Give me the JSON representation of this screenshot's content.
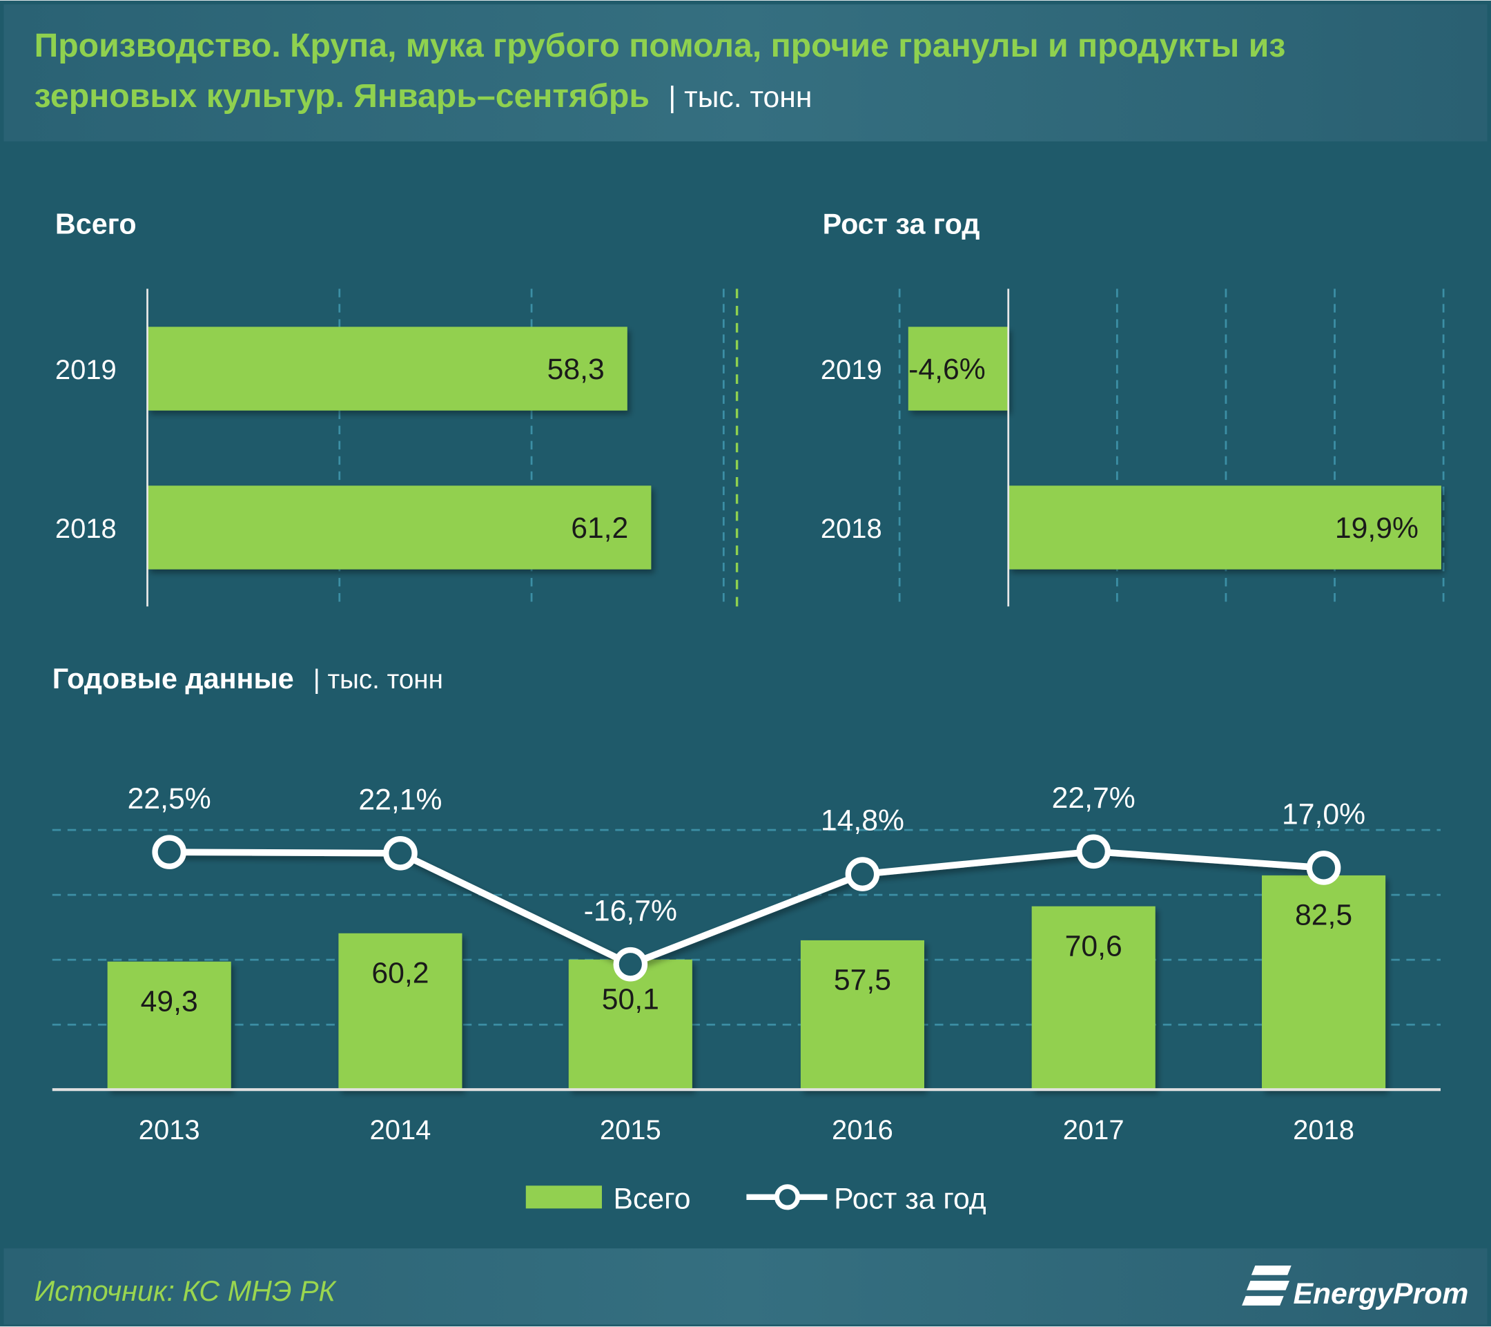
{
  "title": {
    "line1": "Производство. Крупа, мука грубого помола, прочие гранулы и продукты из",
    "line2": "зерновых культур. Январь–сентябрь",
    "unit": "| тыс. тонн"
  },
  "footer": {
    "source": "Источник: КС МНЭ РК",
    "logo": "EnergyProm"
  },
  "colors": {
    "background": "#1f5a6a",
    "header": "#2e6678",
    "bar": "#92d050",
    "accent_text": "#8fd14f",
    "line": "#ffffff"
  },
  "chart_data": [
    {
      "type": "bar",
      "orientation": "horizontal",
      "title": "Всего",
      "categories": [
        "2019",
        "2018"
      ],
      "values": [
        58.3,
        61.2
      ],
      "labels": [
        "58,3",
        "61,2"
      ],
      "xlim": [
        0,
        70
      ],
      "grid": true
    },
    {
      "type": "bar",
      "orientation": "horizontal",
      "title": "Рост за год",
      "categories": [
        "2019",
        "2018"
      ],
      "values": [
        -4.6,
        19.9
      ],
      "labels": [
        "-4,6%",
        "19,9%"
      ],
      "xlim": [
        -5,
        20
      ],
      "grid": true
    },
    {
      "type": "bar+line",
      "title": "Годовые данные",
      "unit": "| тыс. тонн",
      "categories": [
        "2013",
        "2014",
        "2015",
        "2016",
        "2017",
        "2018"
      ],
      "series": [
        {
          "name": "Всего",
          "type": "bar",
          "values": [
            49.3,
            60.2,
            50.1,
            57.5,
            70.6,
            82.5
          ],
          "labels": [
            "49,3",
            "60,2",
            "50,1",
            "57,5",
            "70,6",
            "82,5"
          ]
        },
        {
          "name": "Рост за год",
          "type": "line",
          "values": [
            22.5,
            22.1,
            -16.7,
            14.8,
            22.7,
            17.0
          ],
          "labels": [
            "22,5%",
            "22,1%",
            "-16,7%",
            "14,8%",
            "22,7%",
            "17,0%"
          ]
        }
      ],
      "ylim": [
        0,
        100
      ],
      "grid": true,
      "legend": "bottom"
    }
  ]
}
